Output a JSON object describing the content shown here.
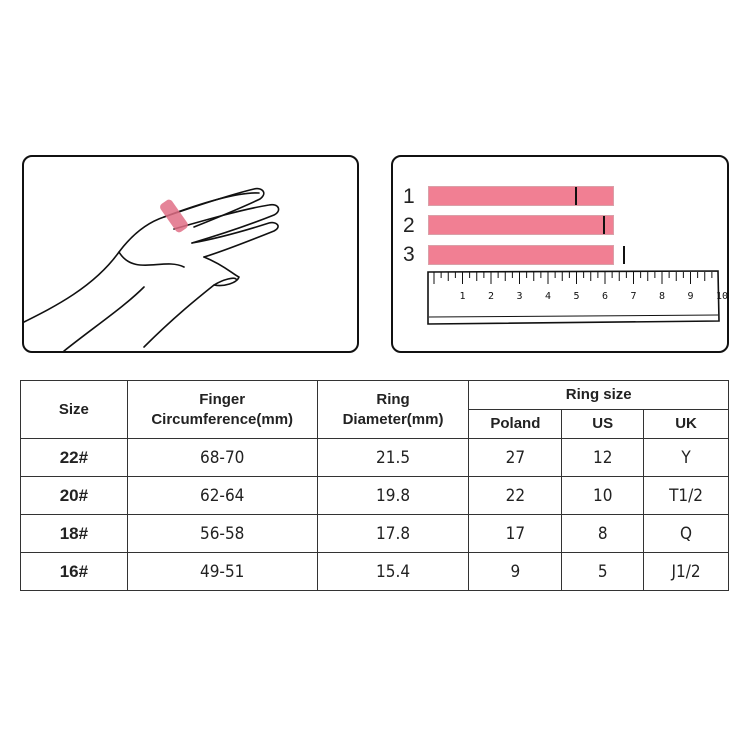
{
  "illustration": {
    "bars": [
      {
        "label": "1",
        "mark_cm": 4.9
      },
      {
        "label": "2",
        "mark_cm": 5.9
      },
      {
        "label": "3",
        "mark_cm": 6.6
      }
    ],
    "ruler_labels": [
      "1",
      "2",
      "3",
      "4",
      "5",
      "6",
      "7",
      "8",
      "9",
      "10"
    ],
    "accent_color": "#f17f93"
  },
  "table": {
    "headers": {
      "size": "Size",
      "finger_line1": "Finger",
      "finger_line2": "Circumference(mm)",
      "ring_line1": "Ring",
      "ring_line2": "Diameter(mm)",
      "ring_size": "Ring size",
      "poland": "Poland",
      "us": "US",
      "uk": "UK"
    },
    "rows": [
      {
        "size": "22#",
        "circumference": "68-70",
        "diameter": "21.5",
        "poland": "27",
        "us": "12",
        "uk": "Y"
      },
      {
        "size": "20#",
        "circumference": "62-64",
        "diameter": "19.8",
        "poland": "22",
        "us": "10",
        "uk": "T1/2"
      },
      {
        "size": "18#",
        "circumference": "56-58",
        "diameter": "17.8",
        "poland": "17",
        "us": "8",
        "uk": "Q"
      },
      {
        "size": "16#",
        "circumference": "49-51",
        "diameter": "15.4",
        "poland": "9",
        "us": "5",
        "uk": "J1/2"
      }
    ]
  }
}
